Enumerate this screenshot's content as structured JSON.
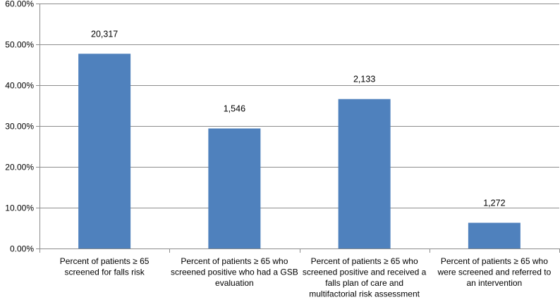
{
  "chart_data": {
    "type": "bar",
    "categories": [
      [
        "Percent of patients ≥ 65",
        "screened for falls risk"
      ],
      [
        "Percent of patients ≥ 65 who",
        "screened positive who had a GSB",
        "evaluation"
      ],
      [
        "Percent of patients ≥ 65 who",
        "screened positive and received a",
        "falls plan of care and",
        "multifactorial risk assessment"
      ],
      [
        "Percent of patients ≥ 65 who",
        "were screened and referred to",
        "an intervention"
      ]
    ],
    "values": [
      47.7,
      29.4,
      36.6,
      6.3
    ],
    "data_labels": [
      "20,317",
      "1,546",
      "2,133",
      "1,272"
    ],
    "y_ticks": [
      "0.00%",
      "10.00%",
      "20.00%",
      "30.00%",
      "40.00%",
      "50.00%",
      "60.00%"
    ],
    "ylim": [
      0,
      60
    ],
    "y_step": 10,
    "grid": true,
    "legend": "none",
    "title": "",
    "xlabel": "",
    "ylabel": "",
    "bar_color": "#4f81bd",
    "grid_color": "#8c8c8c",
    "axis_color": "#8c8c8c"
  }
}
